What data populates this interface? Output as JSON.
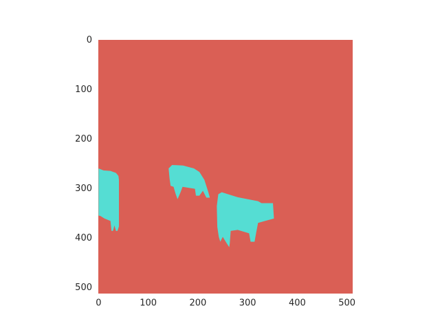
{
  "chart_data": {
    "type": "image",
    "background": "#da5f55",
    "xlim": [
      -0.5,
      511.5
    ],
    "ylim": [
      511.5,
      -0.5
    ],
    "xticks": [
      0,
      100,
      200,
      300,
      400,
      500
    ],
    "yticks": [
      0,
      100,
      200,
      300,
      400,
      500
    ],
    "grid": false,
    "regions": [
      {
        "color": "#55ddd3",
        "points": [
          [
            0,
            259
          ],
          [
            10,
            263
          ],
          [
            24,
            264
          ],
          [
            35,
            268
          ],
          [
            40,
            274
          ],
          [
            41,
            282
          ],
          [
            41,
            376
          ],
          [
            38,
            385
          ],
          [
            35,
            385
          ],
          [
            32,
            374
          ],
          [
            29,
            385
          ],
          [
            26,
            385
          ],
          [
            24,
            365
          ],
          [
            12,
            360
          ],
          [
            4,
            355
          ],
          [
            0,
            354
          ]
        ]
      },
      {
        "color": "#55ddd3",
        "points": [
          [
            141,
            259
          ],
          [
            148,
            252
          ],
          [
            170,
            253
          ],
          [
            192,
            259
          ],
          [
            203,
            266
          ],
          [
            213,
            282
          ],
          [
            221,
            307
          ],
          [
            224,
            318
          ],
          [
            217,
            318
          ],
          [
            210,
            304
          ],
          [
            203,
            314
          ],
          [
            196,
            314
          ],
          [
            194,
            300
          ],
          [
            169,
            296
          ],
          [
            165,
            307
          ],
          [
            159,
            321
          ],
          [
            155,
            310
          ],
          [
            151,
            296
          ],
          [
            145,
            294
          ],
          [
            143,
            280
          ]
        ]
      },
      {
        "color": "#55ddd3",
        "points": [
          [
            241,
            311
          ],
          [
            248,
            307
          ],
          [
            280,
            317
          ],
          [
            321,
            325
          ],
          [
            328,
            329
          ],
          [
            351,
            329
          ],
          [
            353,
            360
          ],
          [
            342,
            363
          ],
          [
            321,
            369
          ],
          [
            317,
            390
          ],
          [
            314,
            407
          ],
          [
            306,
            407
          ],
          [
            303,
            390
          ],
          [
            280,
            383
          ],
          [
            266,
            385
          ],
          [
            264,
            411
          ],
          [
            263,
            418
          ],
          [
            256,
            407
          ],
          [
            250,
            397
          ],
          [
            245,
            407
          ],
          [
            242,
            397
          ],
          [
            239,
            377
          ],
          [
            238,
            335
          ]
        ]
      }
    ]
  }
}
